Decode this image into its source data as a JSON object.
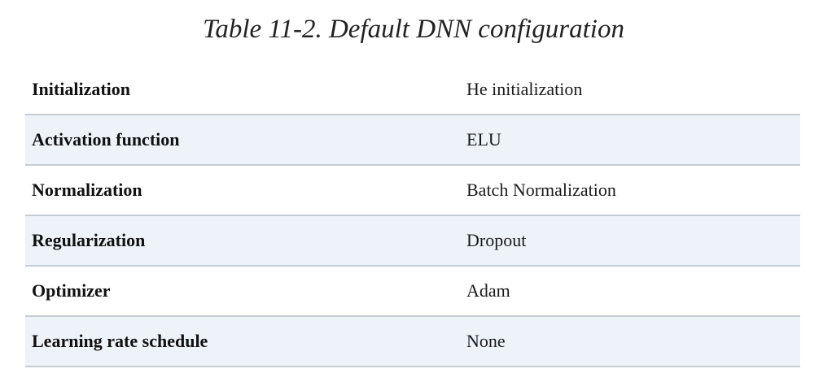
{
  "caption": "Table 11-2. Default DNN configuration",
  "table": {
    "rows": [
      {
        "hyperparameter": "Initialization",
        "value": "He initialization"
      },
      {
        "hyperparameter": "Activation function",
        "value": "ELU"
      },
      {
        "hyperparameter": "Normalization",
        "value": "Batch Normalization"
      },
      {
        "hyperparameter": "Regularization",
        "value": "Dropout"
      },
      {
        "hyperparameter": "Optimizer",
        "value": "Adam"
      },
      {
        "hyperparameter": "Learning rate schedule",
        "value": "None"
      }
    ]
  },
  "colors": {
    "alt_row_background": "#eef3fa",
    "row_divider": "#c6ccd3"
  }
}
